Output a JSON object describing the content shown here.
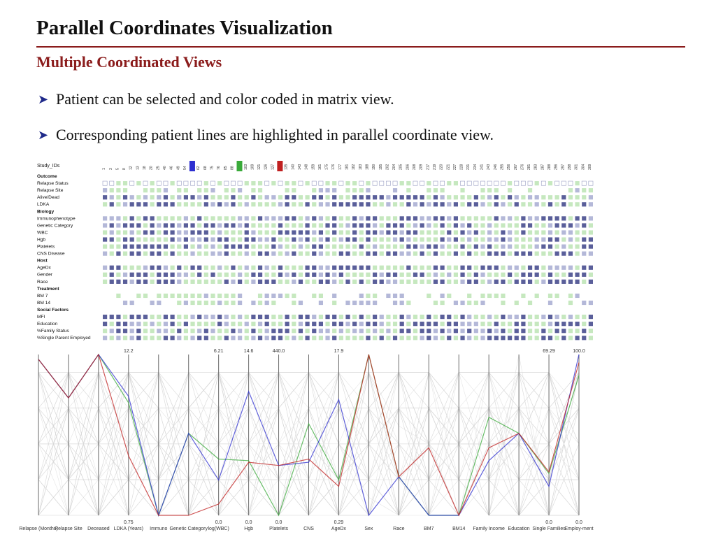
{
  "slide": {
    "title": "Parallel Coordinates Visualization",
    "subtitle": "Multiple Coordinated Views",
    "bullets": [
      "Patient can be selected and color coded in matrix view.",
      "Corresponding patient lines are highlighted in parallel coordinate view."
    ]
  },
  "colors": {
    "title_rule": "#8b1c1c",
    "subtitle": "#8b1c1c",
    "bullet_arrow": "#1f2a8a",
    "dark_cell": "#5a5f9a",
    "mid_cell": "#b4b8d8",
    "light_cell": "#c6e8bf",
    "highlight_blue": "#2d2fd0",
    "highlight_green": "#3aaa3a",
    "highlight_red": "#c02020"
  },
  "matrix": {
    "header_label": "Study_IDs",
    "study_ids": [
      "1",
      "3",
      "5",
      "8",
      "12",
      "13",
      "18",
      "20",
      "25",
      "40",
      "46",
      "49",
      "54",
      "61",
      "62",
      "68",
      "75",
      "76",
      "85",
      "88",
      "89",
      "103",
      "109",
      "121",
      "126",
      "127",
      "131",
      "135",
      "140",
      "143",
      "148",
      "159",
      "161",
      "175",
      "176",
      "177",
      "181",
      "182",
      "183",
      "188",
      "190",
      "195",
      "202",
      "204",
      "205",
      "206",
      "208",
      "209",
      "217",
      "219",
      "220",
      "221",
      "227",
      "228",
      "231",
      "234",
      "241",
      "243",
      "246",
      "255",
      "256",
      "267",
      "276",
      "281",
      "283",
      "287",
      "288",
      "296",
      "297",
      "298",
      "301",
      "304",
      "309"
    ],
    "selected": [
      {
        "column": 13,
        "color": "highlight_blue"
      },
      {
        "column": 20,
        "color": "highlight_green"
      },
      {
        "column": 26,
        "color": "highlight_red"
      }
    ],
    "rows": [
      {
        "label": "Outcome",
        "group": true
      },
      {
        "label": "Relapse Status",
        "group": false
      },
      {
        "label": "Relapse Site",
        "group": false
      },
      {
        "label": "Alive/Dead",
        "group": false
      },
      {
        "label": "LDKA",
        "group": false
      },
      {
        "label": "Biology",
        "group": true
      },
      {
        "label": "Immunophenotype",
        "group": false
      },
      {
        "label": "Genetic Category",
        "group": false
      },
      {
        "label": "WBC",
        "group": false
      },
      {
        "label": "Hgb",
        "group": false
      },
      {
        "label": "Platelets",
        "group": false
      },
      {
        "label": "CNS Disease",
        "group": false
      },
      {
        "label": "Host",
        "group": true
      },
      {
        "label": "AgeDx",
        "group": false
      },
      {
        "label": "Gender",
        "group": false
      },
      {
        "label": "Race",
        "group": false
      },
      {
        "label": "Treatment",
        "group": true
      },
      {
        "label": "BM 7",
        "group": false
      },
      {
        "label": "BM 14",
        "group": false
      },
      {
        "label": "Social Factors",
        "group": true
      },
      {
        "label": "MFI",
        "group": false
      },
      {
        "label": "Education",
        "group": false
      },
      {
        "label": "%Family Status",
        "group": false
      },
      {
        "label": "%Single Parent Employed",
        "group": false
      }
    ]
  },
  "parallel": {
    "axes": [
      {
        "label": "Relapse (Months)",
        "top": "",
        "bottom": ""
      },
      {
        "label": "Relapse Site",
        "top": "",
        "bottom": ""
      },
      {
        "label": "Deceased",
        "top": "",
        "bottom": ""
      },
      {
        "label": "LDKA (Years)",
        "top": "12.2",
        "bottom": "0.75"
      },
      {
        "label": "Immuno",
        "top": "",
        "bottom": ""
      },
      {
        "label": "Genetic Category",
        "top": "",
        "bottom": ""
      },
      {
        "label": "log(WBC)",
        "top": "6.21",
        "bottom": "0.0"
      },
      {
        "label": "Hgb",
        "top": "14.6",
        "bottom": "0.0"
      },
      {
        "label": "Platelets",
        "top": "440.0",
        "bottom": "0.0"
      },
      {
        "label": "CNS",
        "top": "",
        "bottom": ""
      },
      {
        "label": "AgeDx",
        "top": "17.9",
        "bottom": "0.29"
      },
      {
        "label": "Sex",
        "top": "",
        "bottom": ""
      },
      {
        "label": "Race",
        "top": "",
        "bottom": ""
      },
      {
        "label": "BM7",
        "top": "",
        "bottom": ""
      },
      {
        "label": "BM14",
        "top": "",
        "bottom": ""
      },
      {
        "label": "Family Income",
        "top": "",
        "bottom": ""
      },
      {
        "label": "Education",
        "top": "",
        "bottom": ""
      },
      {
        "label": "Single Families",
        "top": "69.29",
        "bottom": "0.0"
      },
      {
        "label": "Employ-ment",
        "top": "100.0",
        "bottom": "0.0"
      }
    ],
    "highlighted_lines": [
      {
        "color": "highlight_green",
        "levels": [
          0.97,
          0.73,
          1.0,
          0.7,
          0.0,
          0.51,
          0.35,
          0.34,
          0.0,
          0.57,
          0.22,
          1.0,
          0.24,
          0.0,
          0.0,
          0.61,
          0.51,
          0.26,
          0.87
        ]
      },
      {
        "color": "highlight_blue",
        "levels": [
          0.97,
          0.73,
          1.0,
          0.74,
          0.0,
          0.51,
          0.22,
          0.77,
          0.31,
          0.33,
          0.72,
          0.0,
          0.24,
          0.0,
          0.0,
          0.34,
          0.51,
          0.18,
          1.0
        ]
      },
      {
        "color": "highlight_red",
        "levels": [
          0.97,
          0.73,
          1.0,
          0.37,
          0.0,
          0.0,
          0.07,
          0.33,
          0.31,
          0.35,
          0.18,
          1.0,
          0.24,
          0.42,
          0.0,
          0.42,
          0.51,
          0.27,
          0.95
        ]
      }
    ]
  }
}
